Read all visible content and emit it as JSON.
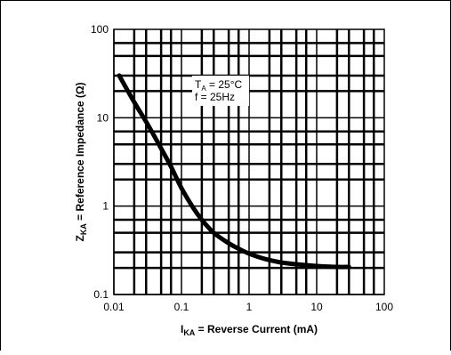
{
  "chart_data": {
    "type": "line",
    "x_scale": "log",
    "y_scale": "log",
    "xlim": [
      0.01,
      100
    ],
    "ylim": [
      0.1,
      100
    ],
    "grid": true,
    "x_ticks": [
      "0.01",
      "0.1",
      "1",
      "10",
      "100"
    ],
    "y_ticks": [
      "0.1",
      "1",
      "10",
      "100"
    ],
    "xlabel": {
      "main": "I",
      "sub": "KA",
      "rest": " = Reverse Current (mA)"
    },
    "ylabel": {
      "main": "Z",
      "sub": "KA",
      "rest": " = Reference Impedance (Ω)"
    },
    "annotation": {
      "line1_main": "T",
      "line1_sub": "A",
      "line1_rest": " = 25°C",
      "line2": "f = 25Hz"
    },
    "series": [
      {
        "x": [
          0.012,
          0.02,
          0.03,
          0.05,
          0.07,
          0.1,
          0.15,
          0.2,
          0.3,
          0.5,
          0.7,
          1,
          1.5,
          2,
          3,
          5,
          10,
          20,
          30
        ],
        "y": [
          30,
          15,
          9,
          4.5,
          2.8,
          1.6,
          0.95,
          0.7,
          0.5,
          0.38,
          0.33,
          0.29,
          0.26,
          0.245,
          0.23,
          0.22,
          0.21,
          0.205,
          0.205
        ]
      }
    ],
    "line_color": "#000000"
  }
}
